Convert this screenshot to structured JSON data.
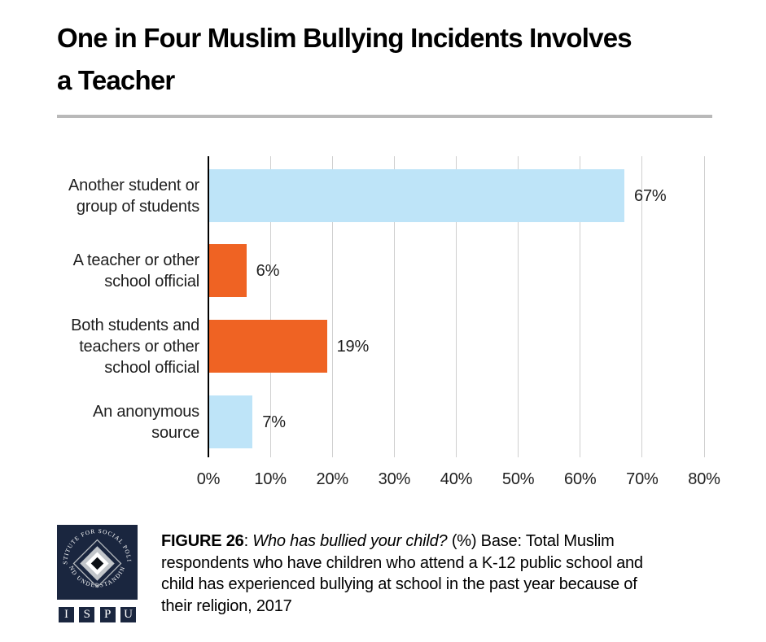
{
  "title": {
    "full": "One in Four Muslim Bullying Incidents Involves a Teacher",
    "line1": "One in Four Muslim Bullying Incidents Involves",
    "line2": "a Teacher"
  },
  "chart_data": {
    "type": "bar",
    "orientation": "horizontal",
    "title": "One in Four Muslim Bullying Incidents Involves a Teacher",
    "categories": [
      "Another student or group of students",
      "A teacher or other school official",
      "Both students and teachers or other school official",
      "An anonymous source"
    ],
    "categories_lines": [
      [
        "Another student or",
        "group of students"
      ],
      [
        "A teacher or other",
        "school official"
      ],
      [
        "Both students and",
        "teachers or other",
        "school official"
      ],
      [
        "An anonymous",
        "source"
      ]
    ],
    "values": [
      67,
      6,
      19,
      7
    ],
    "value_labels": [
      "67%",
      "6%",
      "19%",
      "7%"
    ],
    "bar_colors": [
      "#BEE4F8",
      "#EF6323",
      "#EF6323",
      "#BEE4F8"
    ],
    "x_ticks": [
      "0%",
      "10%",
      "20%",
      "30%",
      "40%",
      "50%",
      "60%",
      "70%",
      "80%"
    ],
    "xlim": [
      0,
      80
    ],
    "xlabel": "",
    "ylabel": "",
    "legend": "none",
    "grid": "vertical gridlines every 10%",
    "gridline_color": "#cfcfcf",
    "axis_line_color": "#000000"
  },
  "footer": {
    "logo": {
      "arc_top": "INSTITUTE FOR SOCIAL POLICY",
      "arc_bottom": "AND UNDERSTANDING",
      "letters": [
        "I",
        "S",
        "P",
        "U"
      ],
      "navy": "#1A263F"
    },
    "caption": {
      "figure_label": "FIGURE 26",
      "separator": ": ",
      "question": "Who has bullied your child?",
      "line1_rest": " (%) Base: Total Muslim",
      "line2": "respondents who have children who attend a K-12 public school and",
      "line3": "child has experienced bullying at school in the past year because of",
      "line4": "their religion, 2017"
    }
  },
  "colors": {
    "background": "#ffffff",
    "light_blue_bar": "#BEE4F8",
    "orange_bar": "#EF6323",
    "divider_gray": "#b9b9b9",
    "text_black": "#1f1f1f",
    "logo_navy": "#1A263F"
  }
}
